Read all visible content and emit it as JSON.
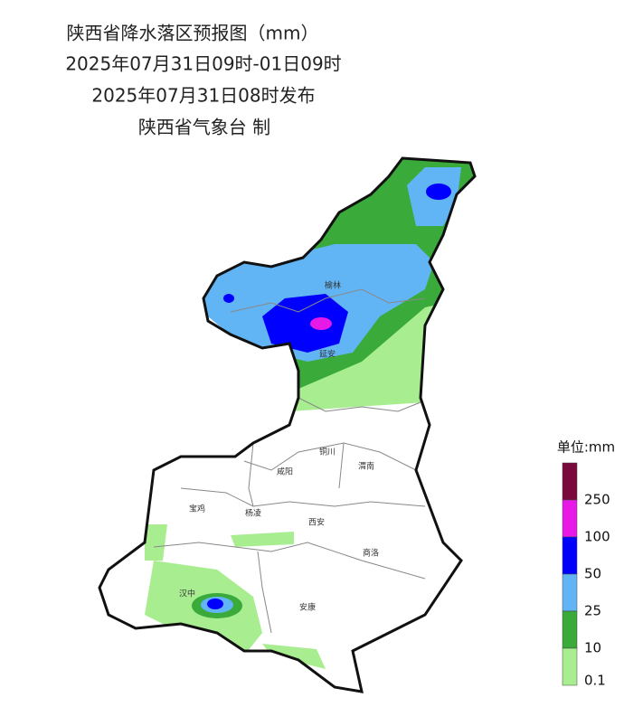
{
  "title": {
    "lines": [
      "陕西省降水落区预报图（mm）",
      "2025年07月31日09时-01日09时",
      "2025年07月31日08时发布",
      "陕西省气象台 制"
    ]
  },
  "cities": [
    {
      "label": "榆林"
    },
    {
      "label": "延安"
    },
    {
      "label": "铜川"
    },
    {
      "label": "咸阳"
    },
    {
      "label": "渭南"
    },
    {
      "label": "宝鸡"
    },
    {
      "label": "杨凌"
    },
    {
      "label": "西安"
    },
    {
      "label": "商洛"
    },
    {
      "label": "汉中"
    },
    {
      "label": "安康"
    }
  ],
  "legend": {
    "title": "单位:mm",
    "levels": [
      {
        "label": "250",
        "color": "#7a0a3c"
      },
      {
        "label": "100",
        "color": "#e619e6"
      },
      {
        "label": "50",
        "color": "#0000ff"
      },
      {
        "label": "25",
        "color": "#62b5f4"
      },
      {
        "label": "10",
        "color": "#3aaa3a"
      },
      {
        "label": "0.1",
        "color": "#a8ee90"
      }
    ]
  }
}
